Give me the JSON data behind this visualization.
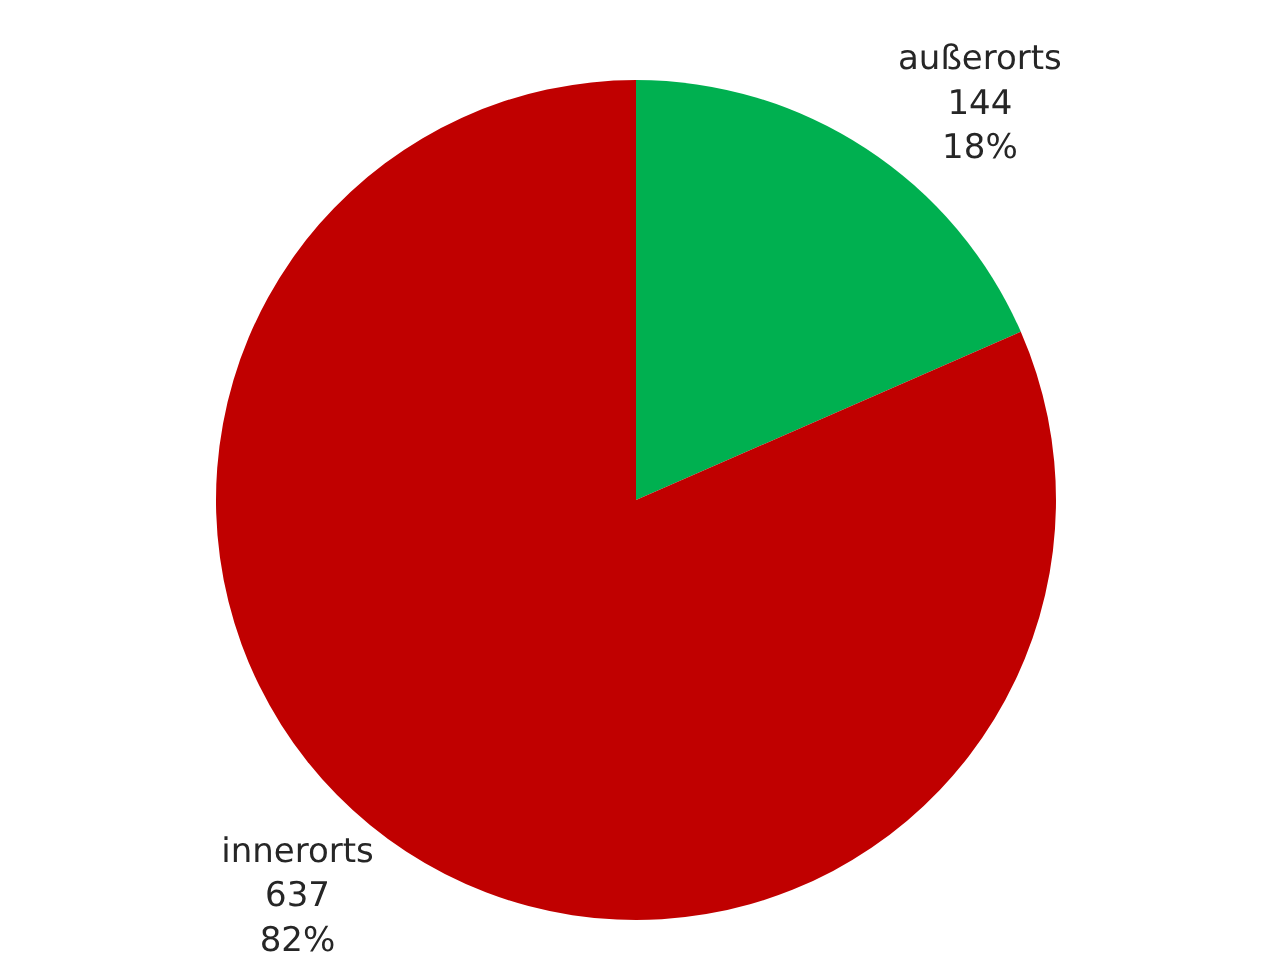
{
  "chart_data": {
    "type": "pie",
    "categories": [
      "außerorts",
      "innerorts"
    ],
    "values": [
      144,
      637
    ],
    "colors": [
      "#00b050",
      "#c00000"
    ],
    "value_labels": [
      "144\n18%",
      "637\n82%"
    ],
    "legend": false
  }
}
